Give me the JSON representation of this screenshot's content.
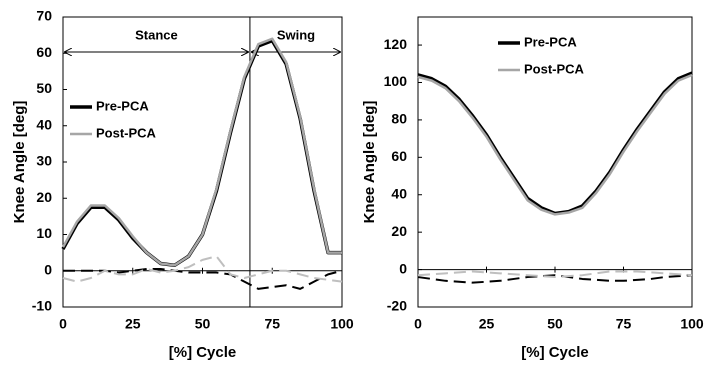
{
  "chart_data": [
    {
      "type": "line",
      "xlabel": "[%] Cycle",
      "ylabel": "Knee Angle [deg]",
      "x": [
        0,
        5,
        10,
        15,
        20,
        25,
        30,
        35,
        40,
        45,
        50,
        55,
        60,
        65,
        70,
        75,
        80,
        85,
        90,
        95,
        100
      ],
      "xlim": [
        0,
        100
      ],
      "xticks": [
        0,
        25,
        50,
        75,
        100
      ],
      "ylim": [
        -10,
        70
      ],
      "yticks": [
        -10,
        0,
        10,
        20,
        30,
        40,
        50,
        60,
        70
      ],
      "grid": false,
      "legend": "left",
      "phase_boundary": 67,
      "phases": [
        "Stance",
        "Swing"
      ],
      "series": [
        {
          "name": "Pre-PCA",
          "color": "#000000",
          "dash": false,
          "values": [
            6,
            13,
            17.5,
            17.5,
            14,
            9,
            5,
            2,
            1.5,
            4,
            10,
            22,
            38,
            53,
            62,
            63.5,
            57,
            42,
            22,
            5,
            5
          ]
        },
        {
          "name": "Post-PCA",
          "color": "#a6a6a6",
          "dash": false,
          "values": [
            6.5,
            13.5,
            18,
            18,
            14.5,
            9.5,
            5,
            2,
            1.5,
            4,
            10,
            22.5,
            38.5,
            53.5,
            62.5,
            64,
            57.5,
            42.5,
            22.5,
            5,
            5
          ]
        },
        {
          "color": "#000000",
          "dash": true,
          "values": [
            0,
            0,
            0,
            0,
            -0.5,
            0,
            0.5,
            0.5,
            0,
            -0.5,
            -0.5,
            -0.5,
            -1,
            -3,
            -5,
            -4.5,
            -4,
            -5,
            -3,
            -1,
            0
          ]
        },
        {
          "color": "#bfbfbf",
          "dash": true,
          "values": [
            -2,
            -3,
            -2,
            0,
            -1,
            -1,
            0.5,
            -0.5,
            0,
            1,
            3,
            4,
            -1,
            -2,
            -1,
            0,
            0,
            -1,
            -2,
            -2.5,
            -3
          ]
        }
      ]
    },
    {
      "type": "line",
      "xlabel": "[%] Cycle",
      "ylabel": "Knee Angle [deg]",
      "x": [
        0,
        5,
        10,
        15,
        20,
        25,
        30,
        35,
        40,
        45,
        50,
        55,
        60,
        65,
        70,
        75,
        80,
        85,
        90,
        95,
        100
      ],
      "xlim": [
        0,
        100
      ],
      "xticks": [
        0,
        25,
        50,
        75,
        100
      ],
      "ylim": [
        -20,
        135
      ],
      "yticks": [
        -20,
        0,
        20,
        40,
        60,
        80,
        100,
        120
      ],
      "grid": false,
      "legend": "top",
      "series": [
        {
          "name": "Pre-PCA",
          "color": "#000000",
          "dash": false,
          "values": [
            104,
            102,
            98,
            91,
            82,
            72,
            60,
            49,
            38,
            33,
            30,
            31,
            34,
            42,
            52,
            64,
            75,
            85,
            95,
            102,
            105
          ]
        },
        {
          "name": "Post-PCA",
          "color": "#a6a6a6",
          "dash": false,
          "values": [
            103,
            101,
            97,
            90,
            81,
            71,
            59,
            48,
            37,
            32,
            29.5,
            30.5,
            33,
            41,
            51,
            63,
            74,
            84,
            94,
            101,
            104
          ]
        },
        {
          "color": "#000000",
          "dash": true,
          "values": [
            -4,
            -5,
            -6,
            -6.5,
            -7,
            -6.5,
            -6,
            -5,
            -4,
            -3.5,
            -3,
            -4,
            -5,
            -5.5,
            -6,
            -6,
            -5.5,
            -5,
            -4,
            -3.5,
            -3
          ]
        },
        {
          "color": "#bfbfbf",
          "dash": true,
          "values": [
            -3,
            -2.5,
            -2,
            -1.5,
            -1,
            -1.5,
            -2,
            -2.5,
            -3,
            -3.5,
            -4,
            -3.5,
            -3,
            -2,
            -1,
            -1,
            -1,
            -1.5,
            -2,
            -2.5,
            -3
          ]
        }
      ]
    }
  ]
}
